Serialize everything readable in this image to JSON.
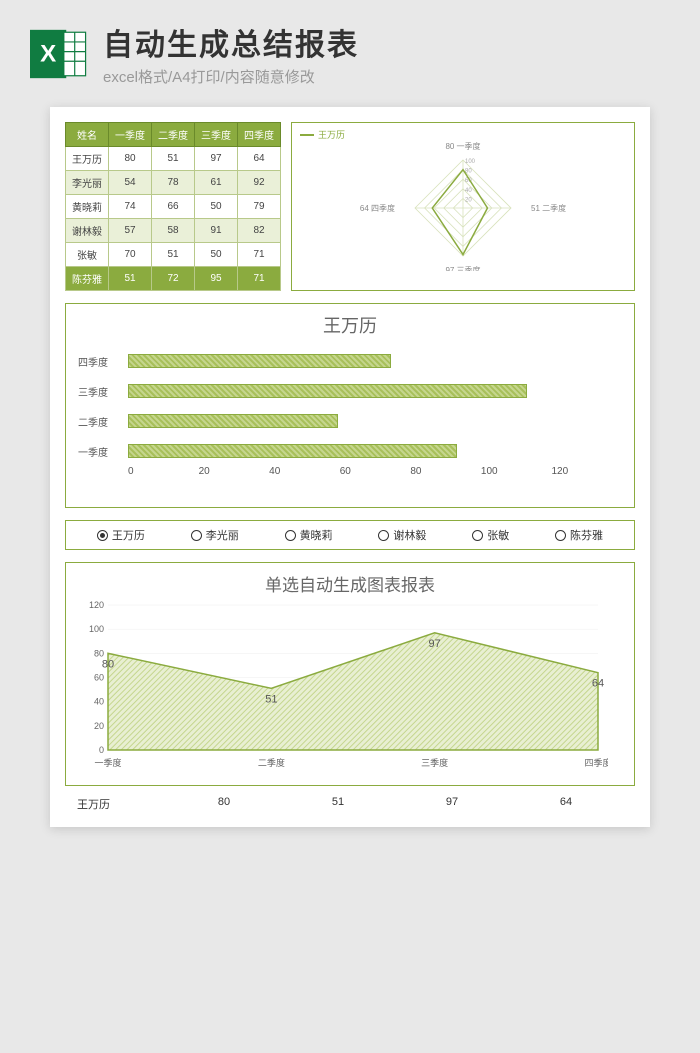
{
  "header": {
    "title": "自动生成总结报表",
    "subtitle": "excel格式/A4打印/内容随意修改"
  },
  "table": {
    "columns": [
      "姓名",
      "一季度",
      "二季度",
      "三季度",
      "四季度"
    ],
    "rows": [
      [
        "王万历",
        "80",
        "51",
        "97",
        "64"
      ],
      [
        "李光丽",
        "54",
        "78",
        "61",
        "92"
      ],
      [
        "黄晓莉",
        "74",
        "66",
        "50",
        "79"
      ],
      [
        "谢林毅",
        "57",
        "58",
        "91",
        "82"
      ],
      [
        "张敏",
        "70",
        "51",
        "50",
        "71"
      ],
      [
        "陈芬雅",
        "51",
        "72",
        "95",
        "71"
      ]
    ],
    "highlight_row": 5
  },
  "radar": {
    "legend": "王万历",
    "axes": [
      "一季度",
      "二季度",
      "三季度",
      "四季度"
    ],
    "values": [
      80,
      51,
      97,
      64
    ],
    "axis_ticks": [
      "20",
      "40",
      "60",
      "80",
      "100"
    ],
    "max": 100,
    "line_color": "#8bab3f",
    "grid_color": "#d8e2bc"
  },
  "bar_chart": {
    "type": "bar",
    "title": "王万历",
    "categories": [
      "四季度",
      "三季度",
      "二季度",
      "一季度"
    ],
    "values": [
      64,
      97,
      51,
      80
    ],
    "xmax": 120,
    "xticks": [
      "0",
      "20",
      "40",
      "60",
      "80",
      "100",
      "120"
    ],
    "bar_color": "#a8c05b",
    "border_color": "#8bab3f"
  },
  "radios": {
    "options": [
      "王万历",
      "李光丽",
      "黄晓莉",
      "谢林毅",
      "张敏",
      "陈芬雅"
    ],
    "selected": 0
  },
  "area_chart": {
    "type": "area",
    "title": "单选自动生成图表报表",
    "categories": [
      "一季度",
      "二季度",
      "三季度",
      "四季度"
    ],
    "values": [
      80,
      51,
      97,
      64
    ],
    "ymax": 120,
    "yticks": [
      "0",
      "20",
      "40",
      "60",
      "80",
      "100",
      "120"
    ],
    "fill_color": "#c5d68e",
    "line_color": "#8bab3f",
    "label_fontsize": 11
  },
  "summary": {
    "name": "王万历",
    "values": [
      "80",
      "51",
      "97",
      "64"
    ]
  }
}
